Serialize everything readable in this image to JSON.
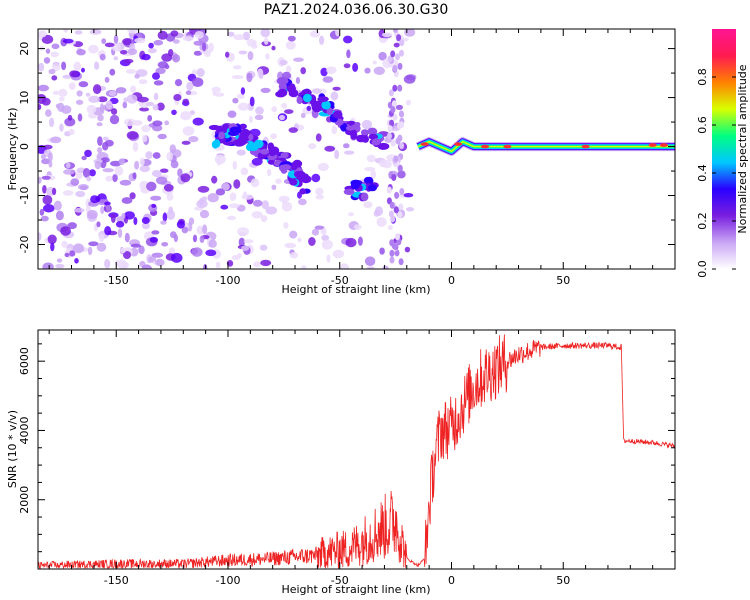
{
  "figure": {
    "title": "PAZ1.2024.036.06.30.G30"
  },
  "chart_data": [
    {
      "type": "heatmap",
      "title": "PAZ1.2024.036.06.30.G30",
      "xlabel": "Height of straight line (km)",
      "ylabel": "Frequency (Hz)",
      "xlim": [
        -185,
        100
      ],
      "ylim": [
        -25,
        24
      ],
      "xticks": [
        -150,
        -100,
        -50,
        0,
        50
      ],
      "yticks": [
        -20,
        -10,
        0,
        10,
        20
      ],
      "grid": false,
      "colorbar": {
        "label": "Normalized spectral amplitude",
        "range": [
          0,
          1
        ],
        "ticks": [
          "0.0",
          "0.2",
          "0.4",
          "0.6",
          "0.8"
        ],
        "tick_values": [
          0.0,
          0.2,
          0.4,
          0.6,
          0.8
        ],
        "colormap": [
          "#ffffff",
          "#c9a6f5",
          "#7a1fe0",
          "#2a00ff",
          "#00c8ff",
          "#00ff80",
          "#d8ff00",
          "#ff8000",
          "#ff1a50",
          "#ff1493"
        ]
      },
      "regions": {
        "noise_x": [
          -185,
          -18
        ],
        "main_track": [
          [
            -105,
            2
          ],
          [
            -95,
            3
          ],
          [
            -85,
            -1
          ],
          [
            -75,
            -3
          ],
          [
            -65,
            -8
          ]
        ],
        "upper_track": [
          [
            -75,
            12
          ],
          [
            -60,
            9
          ],
          [
            -50,
            6
          ],
          [
            -40,
            2
          ],
          [
            -30,
            1
          ]
        ],
        "lower_blobs": [
          [
            -45,
            -8
          ],
          [
            -40,
            -10
          ],
          [
            -35,
            -7
          ]
        ],
        "carrier_x": [
          -18,
          100
        ],
        "carrier_freq": [
          [
            -15,
            0
          ],
          [
            -10,
            1
          ],
          [
            -5,
            0
          ],
          [
            0,
            -1
          ],
          [
            5,
            1
          ],
          [
            10,
            0
          ],
          [
            20,
            0
          ],
          [
            100,
            0
          ]
        ]
      }
    },
    {
      "type": "line",
      "xlabel": "Height of straight line (km)",
      "ylabel": "SNR (10 * v/v)",
      "xlim": [
        -185,
        100
      ],
      "ylim": [
        0,
        6900
      ],
      "xticks": [
        -150,
        -100,
        -50,
        0,
        50
      ],
      "yticks": [
        2000,
        4000,
        6000
      ],
      "grid": false,
      "color": "#ee2222",
      "series": [
        {
          "x": [
            -185,
            -150,
            -120,
            -100,
            -80,
            -60,
            -45,
            -35,
            -25,
            -20,
            -15,
            -12,
            -10,
            -8,
            -5,
            0,
            5,
            10,
            15,
            20,
            25,
            30,
            40,
            50,
            60,
            70,
            76,
            77,
            80,
            90,
            100
          ],
          "y": [
            100,
            150,
            150,
            250,
            300,
            400,
            600,
            1000,
            1400,
            300,
            100,
            300,
            1800,
            3000,
            4000,
            4100,
            4700,
            5300,
            5600,
            5800,
            6000,
            6200,
            6400,
            6450,
            6450,
            6450,
            6400,
            3700,
            3700,
            3650,
            3550
          ]
        }
      ]
    }
  ]
}
